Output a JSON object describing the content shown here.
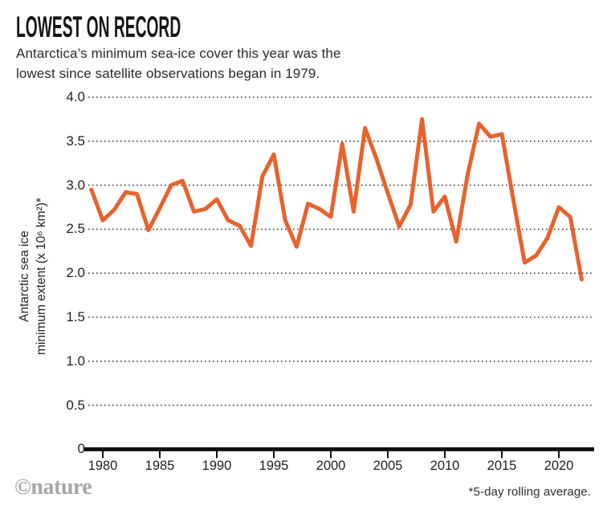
{
  "header": {
    "title": "LOWEST ON RECORD",
    "subtitle_line1": "Antarctica’s minimum sea-ice cover this year was the",
    "subtitle_line2": "lowest since satellite observations began in 1979."
  },
  "footer": {
    "logo": "©nature",
    "footnote": "*5-day rolling average."
  },
  "chart_data": {
    "type": "line",
    "title": "LOWEST ON RECORD",
    "subtitle": "Antarctica’s minimum sea-ice cover this year was the lowest since satellite observations began in 1979.",
    "series_name": "Antarctic sea ice minimum extent (x 10⁶ km²), 5-day rolling average",
    "ylabel_line1": "Antarctic sea ice",
    "ylabel_line2": "minimum extent (x 10⁶ km²)*",
    "xlabel": "",
    "x": [
      1979,
      1980,
      1981,
      1982,
      1983,
      1984,
      1985,
      1986,
      1987,
      1988,
      1989,
      1990,
      1991,
      1992,
      1993,
      1994,
      1995,
      1996,
      1997,
      1998,
      1999,
      2000,
      2001,
      2002,
      2003,
      2004,
      2005,
      2006,
      2007,
      2008,
      2009,
      2010,
      2011,
      2012,
      2013,
      2014,
      2015,
      2016,
      2017,
      2018,
      2019,
      2020,
      2021,
      2022
    ],
    "values": [
      2.95,
      2.6,
      2.72,
      2.92,
      2.9,
      2.49,
      2.74,
      3.0,
      3.05,
      2.7,
      2.73,
      2.84,
      2.6,
      2.54,
      2.31,
      3.1,
      3.35,
      2.6,
      2.3,
      2.79,
      2.73,
      2.64,
      3.47,
      2.7,
      3.65,
      3.3,
      2.91,
      2.53,
      2.78,
      3.75,
      2.7,
      2.87,
      2.36,
      3.12,
      3.7,
      3.55,
      3.58,
      2.84,
      2.12,
      2.2,
      2.4,
      2.75,
      2.64,
      1.93
    ],
    "x_ticks": [
      1980,
      1985,
      1990,
      1995,
      2000,
      2005,
      2010,
      2015,
      2020
    ],
    "y_ticks": [
      {
        "label": "4.0",
        "value": 4.0
      },
      {
        "label": "3.5",
        "value": 3.5
      },
      {
        "label": "3.0",
        "value": 3.0
      },
      {
        "label": "2.5",
        "value": 2.5
      },
      {
        "label": "2.0",
        "value": 2.0
      },
      {
        "label": "1.5",
        "value": 1.5
      },
      {
        "label": "1.0",
        "value": 1.0
      },
      {
        "label": "0.5",
        "value": 0.5
      },
      {
        "label": "0",
        "value": 0
      }
    ],
    "ylim": [
      0,
      4.0
    ],
    "xlim": [
      1979,
      2022
    ],
    "grid": "horizontal-dotted",
    "legend_position": "none",
    "line_color": "#E8622C",
    "axis_color": "#111111",
    "grid_color": "#3d3d3d",
    "footnote": "*5-day rolling average."
  }
}
